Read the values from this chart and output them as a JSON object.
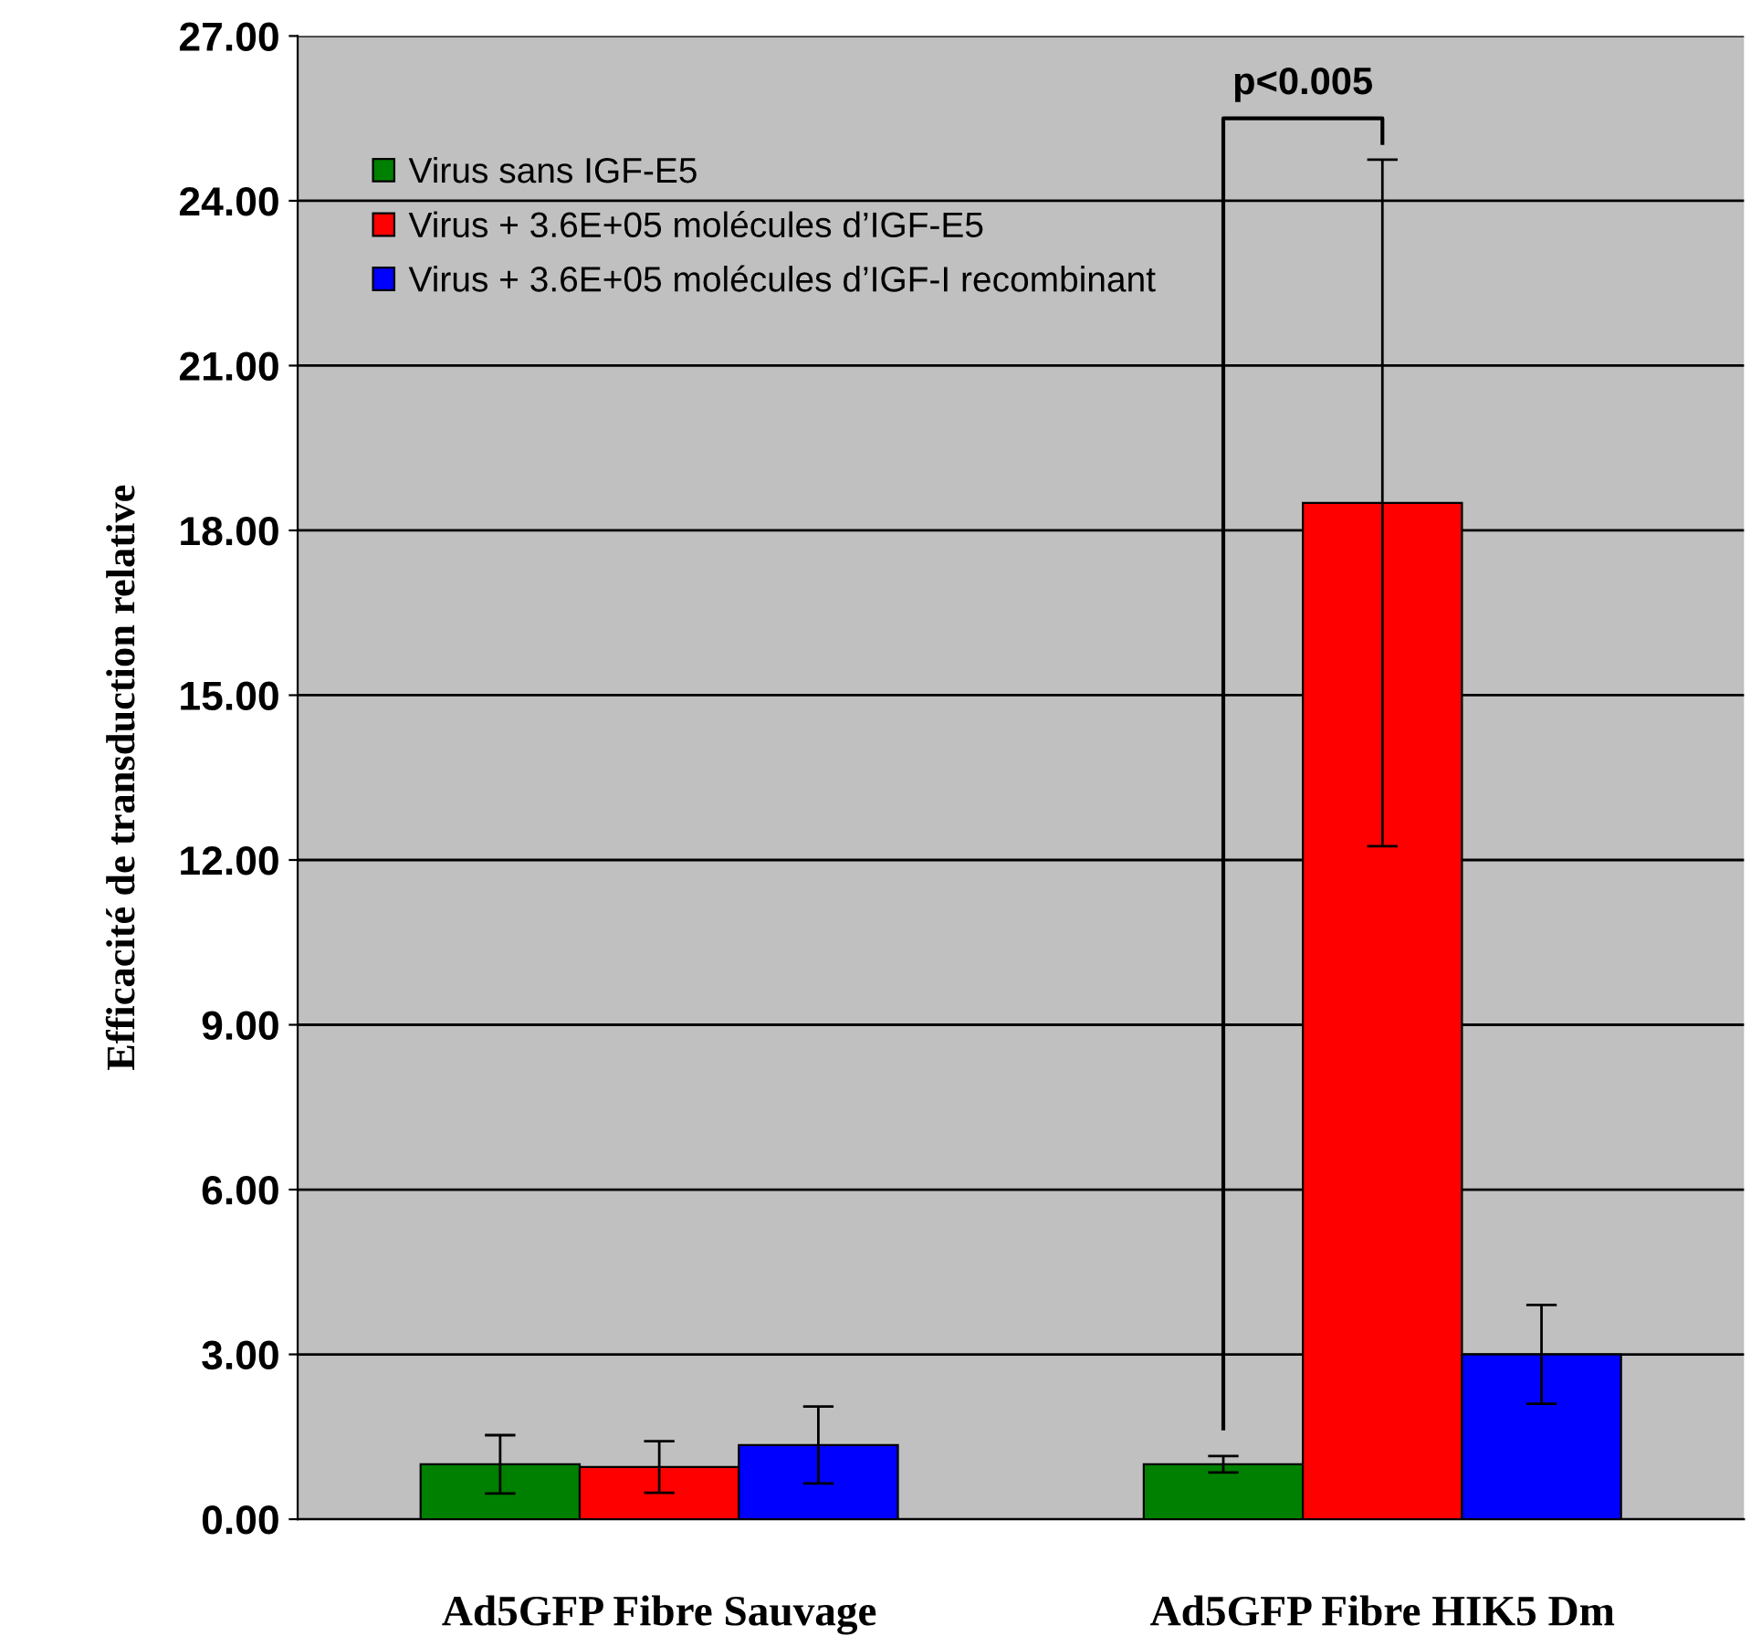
{
  "chart_data": {
    "type": "bar",
    "ylabel": "Efficacité de transduction relative",
    "categories": [
      "Ad5GFP Fibre Sauvage",
      "Ad5GFP Fibre HIK5 Dm"
    ],
    "series": [
      {
        "name": "Virus sans IGF-E5",
        "color": "#008000",
        "values": [
          1.0,
          1.0
        ],
        "errors": [
          0.53,
          0.15
        ]
      },
      {
        "name": "Virus + 3.6E+05 molécules d’IGF-E5",
        "color": "#ff0000",
        "values": [
          0.95,
          18.5
        ],
        "errors": [
          0.47,
          6.25
        ]
      },
      {
        "name": "Virus + 3.6E+05 molécules d’IGF-I recombinant",
        "color": "#0000ff",
        "values": [
          1.35,
          3.0
        ],
        "errors": [
          0.7,
          0.9
        ]
      }
    ],
    "ylim": [
      0,
      27
    ],
    "yticks": [
      {
        "value": 0,
        "label": "0.00"
      },
      {
        "value": 3,
        "label": "3.00"
      },
      {
        "value": 6,
        "label": "6.00"
      },
      {
        "value": 9,
        "label": "9.00"
      },
      {
        "value": 12,
        "label": "12.00"
      },
      {
        "value": 15,
        "label": "15.00"
      },
      {
        "value": 18,
        "label": "18.00"
      },
      {
        "value": 21,
        "label": "21.00"
      },
      {
        "value": 24,
        "label": "24.00"
      },
      {
        "value": 27,
        "label": "27.00"
      }
    ],
    "grid": "y",
    "legend": "top left",
    "annotations": [
      "p<0.005"
    ]
  }
}
